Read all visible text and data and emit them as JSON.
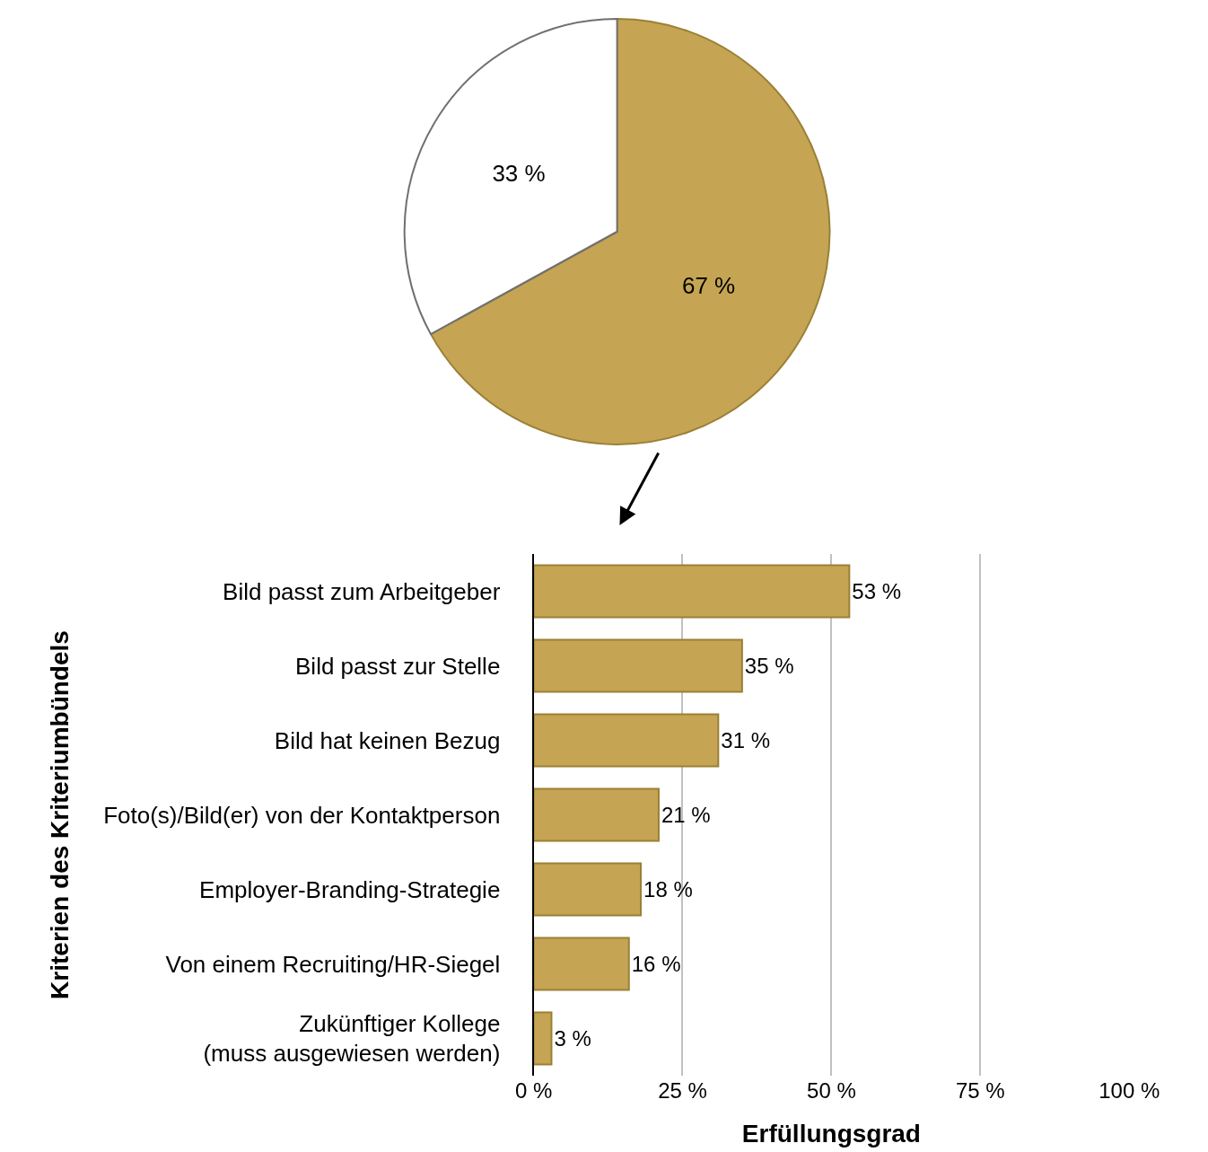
{
  "chart_data": [
    {
      "type": "pie",
      "categories": [
        null,
        null
      ],
      "values": [
        67,
        33
      ],
      "colors": [
        "#c5a453",
        "#ffffff"
      ],
      "value_labels": [
        "67 %",
        "33 %"
      ]
    },
    {
      "type": "bar",
      "orientation": "horizontal",
      "xlabel": "Erfüllungsgrad",
      "ylabel": "Kriterien des Kriteriumbündels",
      "categories": [
        "Bild passt zum Arbeitgeber",
        "Bild passt zur Stelle",
        "Bild hat keinen Bezug",
        "Foto(s)/Bild(er) von der Kontaktperson",
        "Employer-Branding-Strategie",
        "Von einem Recruiting/HR-Siegel",
        "Zukünftiger Kollege\n(muss ausgewiesen werden)"
      ],
      "values": [
        53,
        35,
        31,
        21,
        18,
        16,
        3
      ],
      "color": "#c5a453",
      "value_labels": [
        "53 %",
        "35 %",
        "31 %",
        "21 %",
        "18 %",
        "16 %",
        "3 %"
      ],
      "xlim": [
        0,
        100
      ],
      "xticks": [
        {
          "value": 0,
          "label": "0 %"
        },
        {
          "value": 25,
          "label": "25 %"
        },
        {
          "value": 50,
          "label": "50 %"
        },
        {
          "value": 75,
          "label": "75 %"
        },
        {
          "value": 100,
          "label": "100 %"
        }
      ],
      "grid": "x"
    }
  ]
}
